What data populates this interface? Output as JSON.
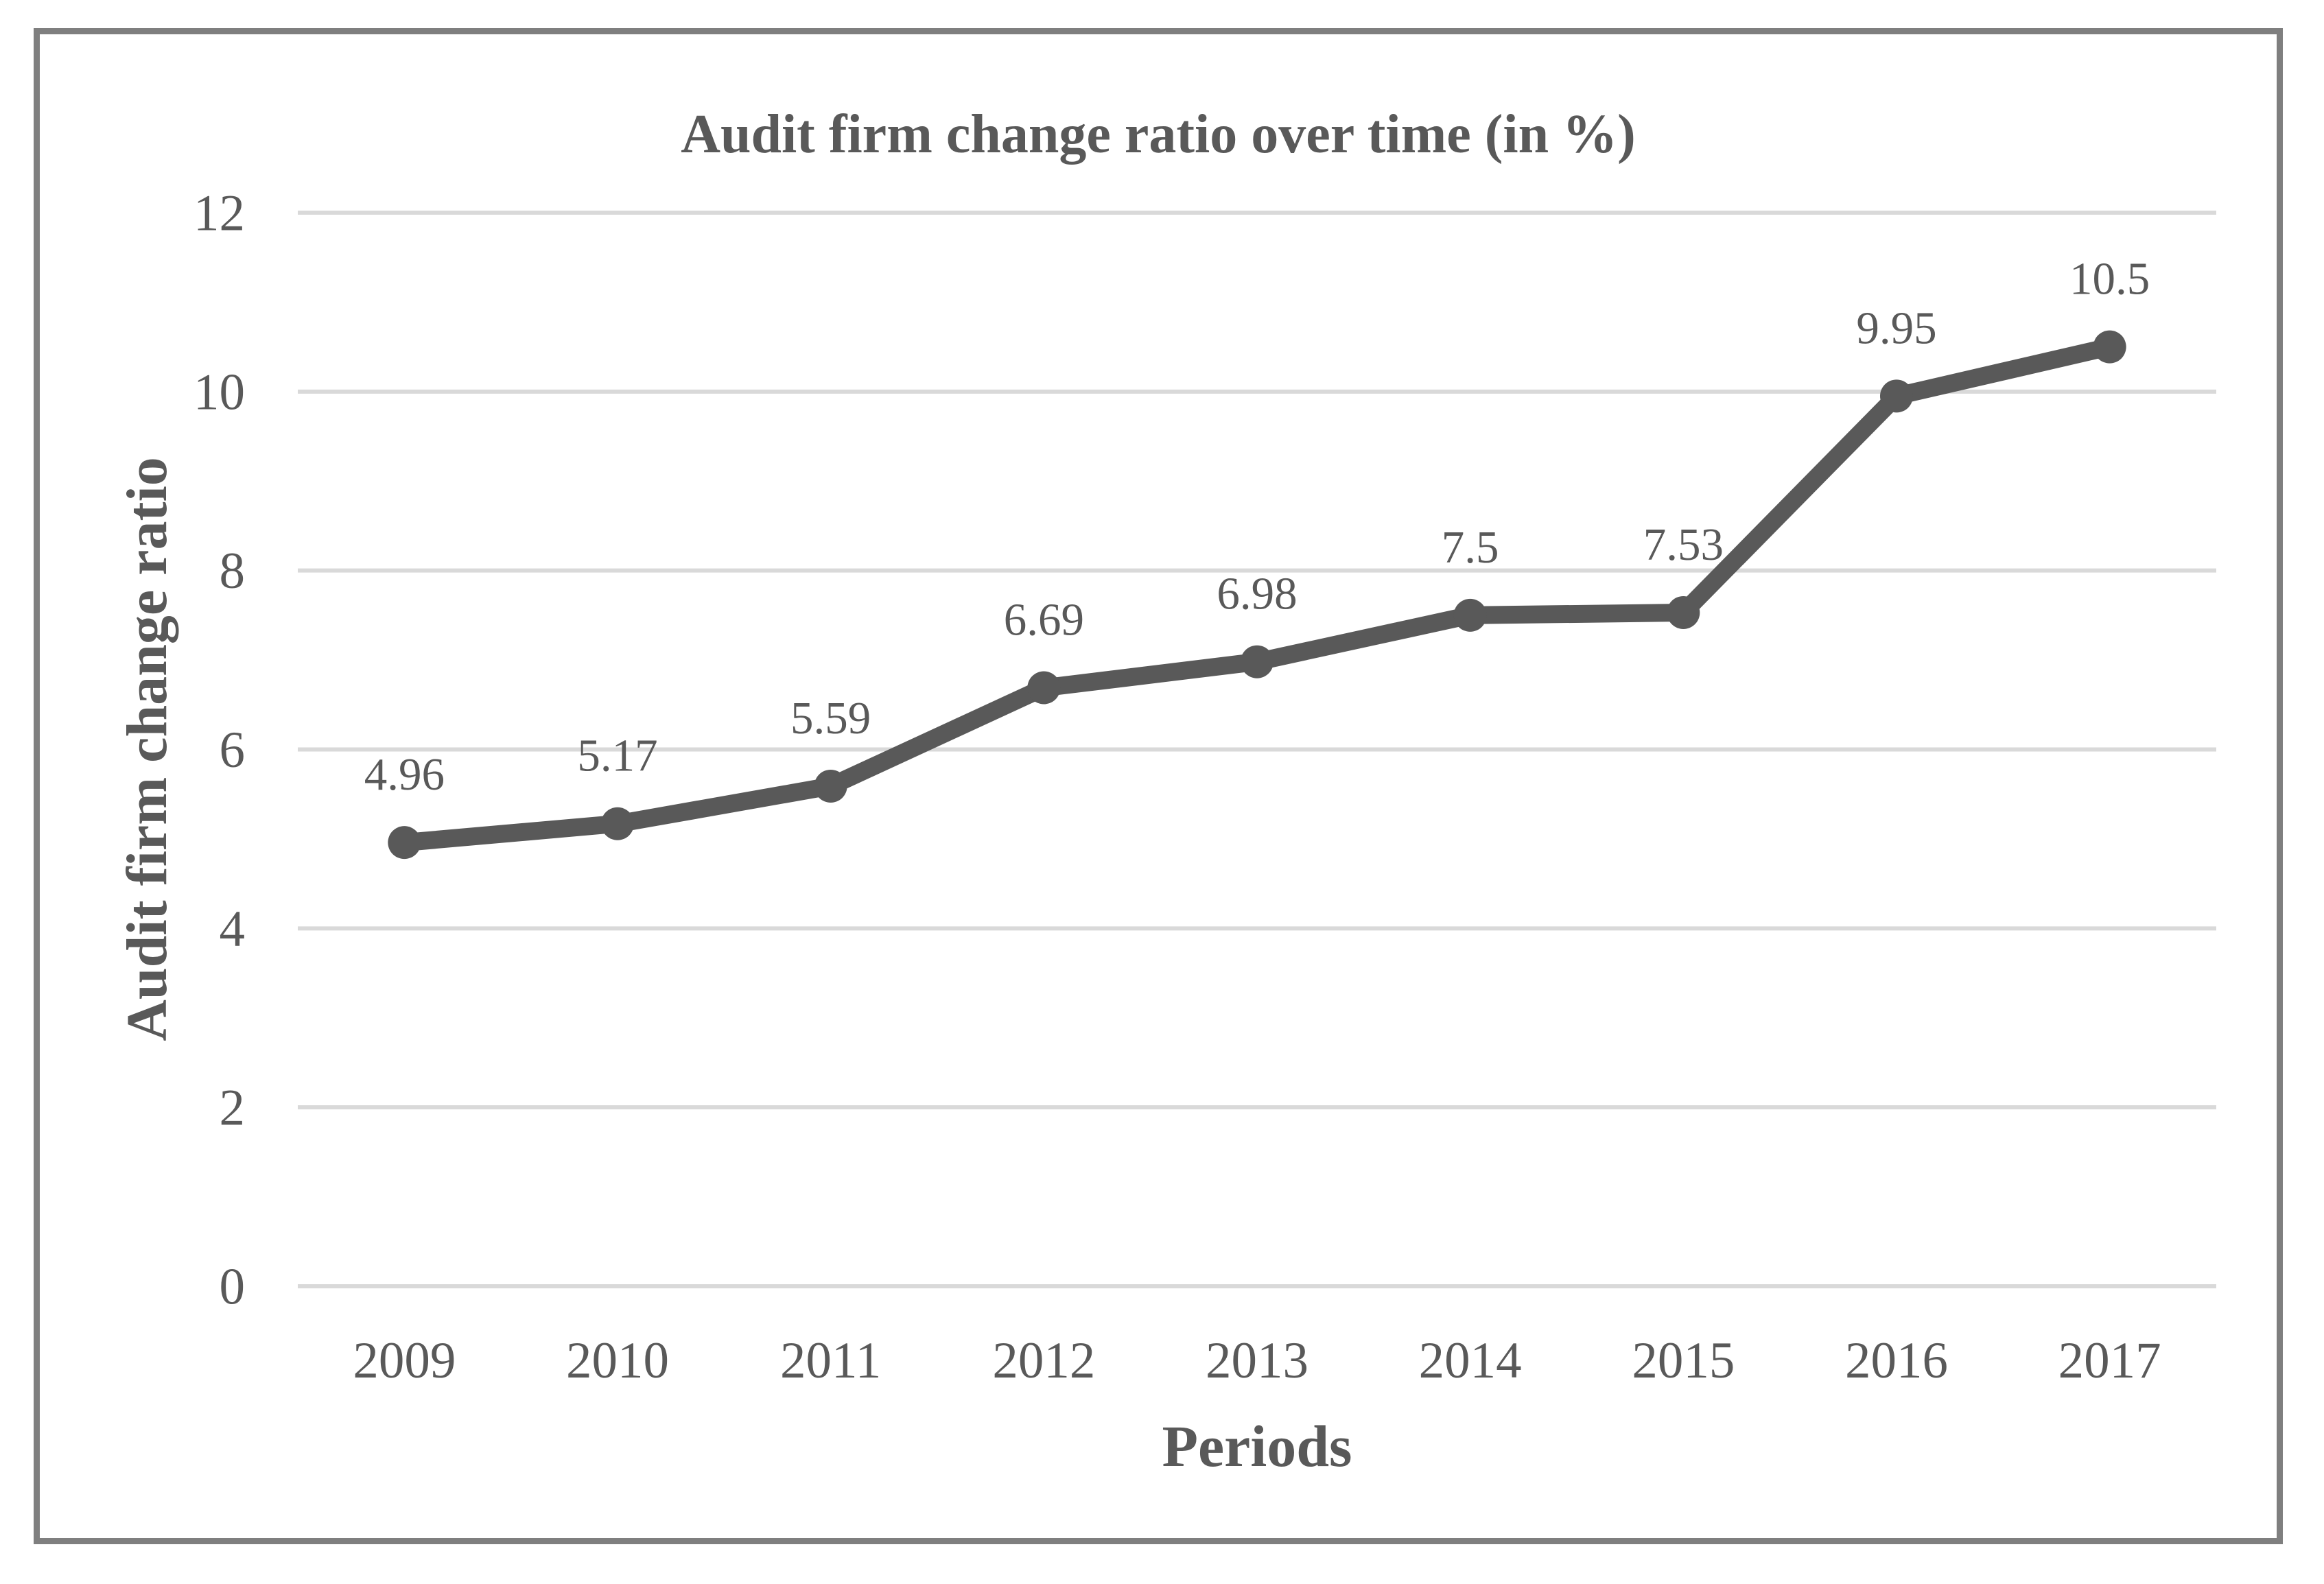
{
  "figure": {
    "background_color": "#ffffff",
    "frame_border_color": "#7f7f7f"
  },
  "chart_data": {
    "type": "line",
    "title": "Audit firm change ratio over time (in %)",
    "xlabel": "Periods",
    "ylabel": "Audit firm change ratio",
    "categories": [
      "2009",
      "2010",
      "2011",
      "2012",
      "2013",
      "2014",
      "2015",
      "2016",
      "2017"
    ],
    "series": [
      {
        "name": "Audit firm change ratio",
        "values": [
          4.96,
          5.17,
          5.59,
          6.69,
          6.98,
          7.5,
          7.53,
          9.95,
          10.5
        ]
      }
    ],
    "data_labels": [
      "4.96",
      "5.17",
      "5.59",
      "6.69",
      "6.98",
      "7.5",
      "7.53",
      "9.95",
      "10.5"
    ],
    "ylim": [
      0,
      12
    ],
    "yticks": [
      0,
      2,
      4,
      6,
      8,
      10,
      12
    ],
    "grid": "horizontal",
    "legend": "none",
    "marker": "circle",
    "colors": {
      "line": "#595959",
      "marker": "#595959",
      "gridline": "#d9d9d9",
      "text": "#595959"
    }
  }
}
